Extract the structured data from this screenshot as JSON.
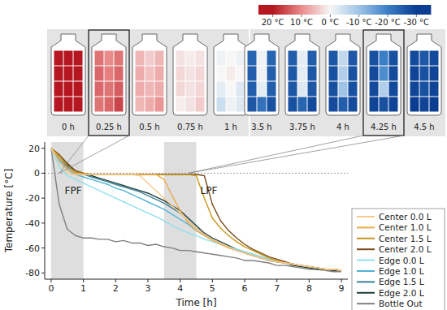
{
  "chart_data": {
    "type": "line",
    "x_label": "Time [h]",
    "y_label": "Temperature [°C]",
    "xlim": [
      -0.2,
      9.2
    ],
    "ylim": [
      -85,
      25
    ],
    "xticks": [
      0,
      1,
      2,
      3,
      4,
      5,
      6,
      7,
      8,
      9
    ],
    "yticks": [
      -80,
      -60,
      -40,
      -20,
      0,
      20
    ],
    "grid": false,
    "legend": "right",
    "x": [
      0,
      0.25,
      0.5,
      0.75,
      1,
      1.25,
      1.5,
      1.75,
      2,
      2.25,
      2.5,
      2.75,
      3,
      3.25,
      3.5,
      3.75,
      4,
      4.25,
      4.5,
      4.75,
      5,
      5.25,
      5.5,
      5.75,
      6,
      6.25,
      6.5,
      6.75,
      7,
      7.25,
      7.5,
      7.75,
      8,
      8.25,
      8.5,
      8.75,
      9
    ],
    "series": [
      {
        "name": "Center 0.0 L",
        "color": "#f7c98b",
        "values": [
          20,
          8,
          0,
          -1,
          -1,
          -1,
          -1,
          -1,
          -1,
          -1,
          -1,
          -2,
          -8,
          -14,
          -20,
          -26,
          -32,
          -38,
          -44,
          -49,
          -53,
          -56,
          -59,
          -62,
          -64,
          -66,
          -68,
          -70,
          -71,
          -72,
          -73,
          -74,
          -75,
          -76,
          -77,
          -77,
          -78
        ]
      },
      {
        "name": "Center 1.0 L",
        "color": "#eeaa4a",
        "values": [
          20,
          12,
          3,
          0,
          -1,
          -1,
          -1,
          -1,
          -1,
          -1,
          -1,
          -1,
          -1,
          -1,
          -5,
          -18,
          -30,
          -40,
          -46,
          -50,
          -54,
          -57,
          -60,
          -62,
          -64,
          -66,
          -68,
          -70,
          -71,
          -72,
          -73,
          -74,
          -75,
          -76,
          -77,
          -77,
          -78
        ]
      },
      {
        "name": "Center 1.5 L",
        "color": "#c9961a",
        "values": [
          20,
          14,
          6,
          1,
          0,
          -1,
          -1,
          -1,
          -1,
          -1,
          -1,
          -1,
          -1,
          -1,
          -1,
          -1,
          -1,
          -1,
          -2,
          -20,
          -36,
          -44,
          -50,
          -55,
          -59,
          -62,
          -65,
          -68,
          -70,
          -72,
          -73,
          -74,
          -75,
          -76,
          -77,
          -77,
          -78
        ]
      },
      {
        "name": "Center 2.0 L",
        "color": "#7a4a1c",
        "values": [
          20,
          15,
          8,
          2,
          0,
          -1,
          -1,
          -1,
          -1,
          -1,
          -1,
          -1,
          -1,
          -1,
          -1,
          -1,
          -1,
          -1,
          -1,
          -2,
          -25,
          -38,
          -46,
          -52,
          -57,
          -61,
          -64,
          -67,
          -69,
          -71,
          -73,
          -74,
          -75,
          -76,
          -77,
          -77,
          -78
        ]
      },
      {
        "name": "Edge 0.0 L",
        "color": "#8ee0f0",
        "values": [
          20,
          5,
          -2,
          -5,
          -8,
          -11,
          -14,
          -17,
          -20,
          -23,
          -26,
          -29,
          -32,
          -35,
          -38,
          -42,
          -45,
          -48,
          -50,
          -53,
          -55,
          -57,
          -59,
          -61,
          -63,
          -65,
          -67,
          -69,
          -70,
          -72,
          -73,
          -74,
          -75,
          -76,
          -77,
          -77,
          -78
        ]
      },
      {
        "name": "Edge 1.0 L",
        "color": "#4fb3d6",
        "values": [
          20,
          10,
          3,
          -1,
          -3,
          -5,
          -7,
          -9,
          -12,
          -14,
          -17,
          -20,
          -23,
          -26,
          -29,
          -33,
          -37,
          -41,
          -46,
          -50,
          -53,
          -56,
          -59,
          -61,
          -63,
          -65,
          -67,
          -69,
          -71,
          -72,
          -73,
          -74,
          -75,
          -76,
          -77,
          -77,
          -78
        ]
      },
      {
        "name": "Edge 1.5 L",
        "color": "#3a7f95",
        "values": [
          20,
          12,
          5,
          1,
          -1,
          -3,
          -5,
          -7,
          -9,
          -11,
          -13,
          -15,
          -18,
          -21,
          -24,
          -28,
          -32,
          -38,
          -44,
          -49,
          -53,
          -56,
          -59,
          -62,
          -64,
          -66,
          -68,
          -70,
          -71,
          -72,
          -73,
          -74,
          -75,
          -76,
          -77,
          -77,
          -78
        ]
      },
      {
        "name": "Edge 2.0 L",
        "color": "#1e3f3c",
        "values": [
          20,
          14,
          7,
          2,
          0,
          -2,
          -4,
          -6,
          -8,
          -10,
          -12,
          -14,
          -16,
          -19,
          -22,
          -26,
          -30,
          -36,
          -42,
          -48,
          -52,
          -55,
          -58,
          -61,
          -64,
          -66,
          -68,
          -70,
          -71,
          -72,
          -74,
          -75,
          -76,
          -77,
          -77,
          -78,
          -78
        ]
      },
      {
        "name": "Bottle Out",
        "color": "#7f7f7f",
        "values": [
          20,
          -25,
          -45,
          -50,
          -52,
          -52,
          -53,
          -53,
          -55,
          -54,
          -56,
          -56,
          -58,
          -57,
          -59,
          -60,
          -62,
          -62,
          -63,
          -64,
          -65,
          -66,
          -67,
          -68,
          -70,
          -70,
          -71,
          -72,
          -74,
          -74,
          -75,
          -76,
          -77,
          -77,
          -78,
          -79,
          -79
        ]
      }
    ],
    "regions": [
      {
        "label": "FPF",
        "start": 0,
        "end": 1
      },
      {
        "label": "LPF",
        "start": 3.5,
        "end": 4.5
      }
    ],
    "reference_lines": [
      0
    ],
    "callouts": [
      0.25,
      4.25
    ],
    "colorbar": {
      "range": [
        -35,
        25
      ],
      "ticks": [
        {
          "value": 20,
          "label": "20 °C"
        },
        {
          "value": 10,
          "label": "10 °C"
        },
        {
          "value": 0,
          "label": "0 °C"
        },
        {
          "value": -10,
          "label": "-10 °C"
        },
        {
          "value": -20,
          "label": "-20 °C"
        },
        {
          "value": -30,
          "label": "-30 °C"
        }
      ]
    },
    "snapshots": [
      {
        "label": "0 h",
        "time": 0,
        "cells": [
          [
            20,
            20,
            20
          ],
          [
            20,
            20,
            20
          ],
          [
            20,
            20,
            20
          ],
          [
            20,
            20,
            20
          ]
        ]
      },
      {
        "label": "0.25 h",
        "time": 0.25,
        "cells": [
          [
            12,
            10,
            12
          ],
          [
            13,
            11,
            13
          ],
          [
            13,
            12,
            14
          ],
          [
            12,
            13,
            16
          ]
        ]
      },
      {
        "label": "0.5 h",
        "time": 0.5,
        "cells": [
          [
            6,
            4,
            6
          ],
          [
            7,
            5,
            7
          ],
          [
            7,
            6,
            7
          ],
          [
            6,
            7,
            9
          ]
        ]
      },
      {
        "label": "0.75 h",
        "time": 0.75,
        "cells": [
          [
            2,
            1,
            2
          ],
          [
            3,
            2,
            3
          ],
          [
            3,
            2,
            3
          ],
          [
            1,
            2,
            4
          ]
        ]
      },
      {
        "label": "1 h",
        "time": 1,
        "cells": [
          [
            -1,
            0,
            -1
          ],
          [
            0,
            1,
            0
          ],
          [
            -2,
            0,
            -3
          ],
          [
            -5,
            -1,
            -3
          ]
        ]
      },
      {
        "label": "3.5 h",
        "time": 3.5,
        "cells": [
          [
            -24,
            -1,
            -24
          ],
          [
            -25,
            -1,
            -25
          ],
          [
            -25,
            -2,
            -25
          ],
          [
            -26,
            -22,
            -27
          ]
        ]
      },
      {
        "label": "3.75 h",
        "time": 3.75,
        "cells": [
          [
            -25,
            -2,
            -25
          ],
          [
            -26,
            -2,
            -26
          ],
          [
            -26,
            -3,
            -26
          ],
          [
            -27,
            -24,
            -28
          ]
        ]
      },
      {
        "label": "4 h",
        "time": 4,
        "cells": [
          [
            -26,
            -6,
            -26
          ],
          [
            -27,
            -8,
            -27
          ],
          [
            -27,
            -10,
            -27
          ],
          [
            -28,
            -25,
            -28
          ]
        ]
      },
      {
        "label": "4.25 h",
        "time": 4.25,
        "cells": [
          [
            -27,
            -20,
            -27
          ],
          [
            -28,
            -18,
            -28
          ],
          [
            -28,
            -8,
            -28
          ],
          [
            -29,
            -27,
            -29
          ]
        ]
      },
      {
        "label": "4.5 h",
        "time": 4.5,
        "cells": [
          [
            -28,
            -26,
            -28
          ],
          [
            -29,
            -27,
            -29
          ],
          [
            -29,
            -27,
            -29
          ],
          [
            -30,
            -29,
            -30
          ]
        ]
      }
    ]
  }
}
